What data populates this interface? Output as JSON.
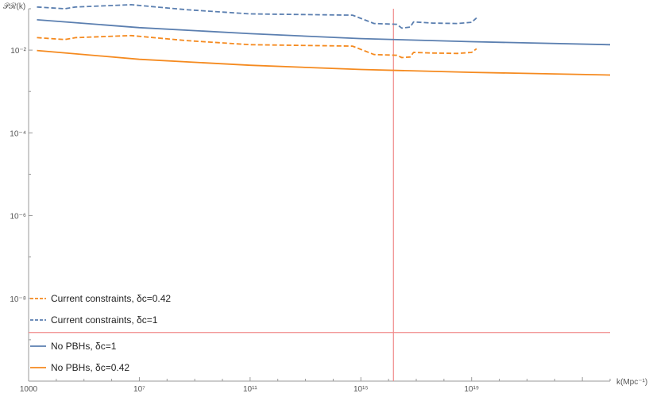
{
  "chart_data": {
    "type": "line",
    "xlabel": "k(Mpc⁻¹)",
    "ylabel": "𝒫ℛ(k)",
    "x_scale": "log",
    "y_scale": "log",
    "xlim": [
      1000,
      1e+24
    ],
    "ylim": [
      1e-10,
      0.1
    ],
    "x_ticks": [
      {
        "value": 1000,
        "label": "1000"
      },
      {
        "value": 10000000.0,
        "label": "10⁷"
      },
      {
        "value": 100000000000.0,
        "label": "10¹¹"
      },
      {
        "value": 1000000000000000.0,
        "label": "10¹⁵"
      },
      {
        "value": 1e+19,
        "label": "10¹⁹"
      }
    ],
    "y_ticks": [
      {
        "value": 0.01,
        "label": "10⁻²"
      },
      {
        "value": 0.0001,
        "label": "10⁻⁴"
      },
      {
        "value": 1e-06,
        "label": "10⁻⁶"
      },
      {
        "value": 1e-08,
        "label": "10⁻⁸"
      }
    ],
    "legend": {
      "placement": "bottom-left",
      "entries": [
        {
          "label": "Current constraints, δc=0.42",
          "series": 1
        },
        {
          "label": "Current constraints, δc=1",
          "series": 0
        },
        {
          "label": "No PBHs, δc=1",
          "series": 2
        },
        {
          "label": "No PBHs, δc=0.42",
          "series": 3
        }
      ]
    },
    "series": [
      {
        "name": "Current constraints, δc=1",
        "color": "#5b7fb0",
        "dash": true,
        "points": [
          [
            2000,
            0.11
          ],
          [
            20000.0,
            0.1
          ],
          [
            50000.0,
            0.11
          ],
          [
            5000000.0,
            0.125
          ],
          [
            500000000.0,
            0.095
          ],
          [
            100000000000.0,
            0.075
          ],
          [
            500000000000000.0,
            0.07
          ],
          [
            3000000000000000.0,
            0.044
          ],
          [
            2e+16,
            0.042
          ],
          [
            3e+16,
            0.034
          ],
          [
            6e+16,
            0.036
          ],
          [
            8e+16,
            0.048
          ],
          [
            4e+17,
            0.045
          ],
          [
            3e+18,
            0.044
          ],
          [
            1e+19,
            0.047
          ],
          [
            1.5e+19,
            0.06
          ]
        ]
      },
      {
        "name": "Current constraints, δc=0.42",
        "color": "#f58a1f",
        "dash": true,
        "points": [
          [
            2000,
            0.02
          ],
          [
            20000.0,
            0.018
          ],
          [
            50000.0,
            0.02
          ],
          [
            5000000.0,
            0.0225
          ],
          [
            500000000.0,
            0.017
          ],
          [
            100000000000.0,
            0.0135
          ],
          [
            500000000000000.0,
            0.0125
          ],
          [
            3000000000000000.0,
            0.0078
          ],
          [
            2e+16,
            0.0075
          ],
          [
            3e+16,
            0.0066
          ],
          [
            6e+16,
            0.0068
          ],
          [
            8e+16,
            0.0088
          ],
          [
            4e+17,
            0.0085
          ],
          [
            3e+18,
            0.0083
          ],
          [
            1e+19,
            0.0088
          ],
          [
            1.5e+19,
            0.0108
          ]
        ]
      },
      {
        "name": "No PBHs, δc=1",
        "color": "#5b7fb0",
        "dash": false,
        "points": [
          [
            2000,
            0.054
          ],
          [
            10000000.0,
            0.035
          ],
          [
            100000000000.0,
            0.025
          ],
          [
            1000000000000000.0,
            0.019
          ],
          [
            1e+19,
            0.016
          ],
          [
            1e+24,
            0.0135
          ]
        ]
      },
      {
        "name": "No PBHs, δc=0.42",
        "color": "#f58a1f",
        "dash": false,
        "points": [
          [
            2000,
            0.0098
          ],
          [
            10000000.0,
            0.006
          ],
          [
            100000000000.0,
            0.0043
          ],
          [
            1000000000000000.0,
            0.0034
          ],
          [
            1e+19,
            0.0029
          ],
          [
            1e+24,
            0.0025
          ]
        ]
      }
    ],
    "reference_lines": [
      {
        "orientation": "vertical",
        "x": 1.5e+16,
        "color": "#f08a8a"
      },
      {
        "orientation": "horizontal",
        "y": 1.5e-09,
        "color": "#f08a8a"
      }
    ]
  }
}
